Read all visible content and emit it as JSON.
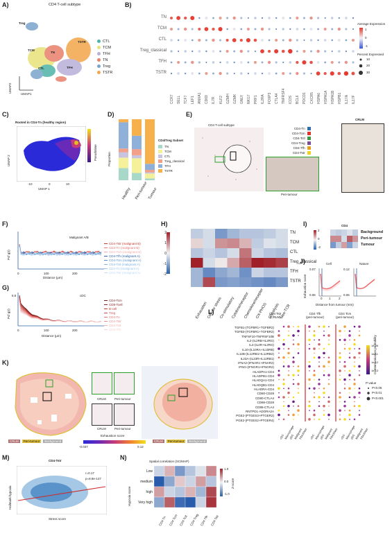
{
  "panels": {
    "A": {
      "label": "A)",
      "title": "CD4 T-cell subtype",
      "xlabel": "UMAP1",
      "ylabel": "UMAP2",
      "legend": [
        {
          "name": "CTL",
          "color": "#4fb3a8"
        },
        {
          "name": "TCM",
          "color": "#e8e27a"
        },
        {
          "name": "TFH",
          "color": "#b8b0d8"
        },
        {
          "name": "TN",
          "color": "#e8806a"
        },
        {
          "name": "Treg",
          "color": "#7aa4cc"
        },
        {
          "name": "TSTR",
          "color": "#f3a64a"
        }
      ],
      "cluster_labels": [
        "Treg",
        "TCM",
        "TN",
        "TSTR",
        "CTL",
        "TFH"
      ]
    },
    "B": {
      "label": "B)",
      "rows": [
        "TN",
        "TCM",
        "CTL",
        "Treg_classical",
        "TFH",
        "TSTR"
      ],
      "genes": [
        "CCR7",
        "SELL",
        "TCF7",
        "LEF1",
        "ANXA1",
        "CD69",
        "IL7R",
        "KLF2",
        "GZMH",
        "GZMK",
        "GNLY",
        "NKG7",
        "PRF1",
        "IL2RA",
        "FOXP3",
        "CTLA4",
        "TNFRSF4",
        "ICOS",
        "BCL6",
        "PDCD1",
        "CXCR5",
        "HSPA6",
        "HSPA1A",
        "HSPA1B",
        "HSPB1",
        "IL17A",
        "IL17F"
      ],
      "avg_title": "Average Expression",
      "avg_ticks": [
        "1",
        "0",
        "-1"
      ],
      "pct_title": "Percent Expressed",
      "pct_ticks": [
        "10",
        "20",
        "30"
      ]
    },
    "C": {
      "label": "C)",
      "title": "Rooted in CD4-Tn (healthy region)",
      "xlabel": "UMAP 1",
      "ylabel": "UMAP 2",
      "cbar": "Pseudotime",
      "xticks": [
        "-10",
        "0",
        "10"
      ],
      "yticks": [
        "10",
        "5",
        "0",
        "-5",
        "-10"
      ],
      "cticks": [
        "20",
        "15",
        "10",
        "5",
        "0"
      ]
    },
    "D": {
      "label": "D)",
      "ylabel": "Proportion",
      "yticks": [
        "100%",
        "75%",
        "50%",
        "25%",
        "0%"
      ],
      "legend_title": "CD4/Treg Subset",
      "legend": [
        {
          "name": "TN",
          "color": "#a8d8c8"
        },
        {
          "name": "TCM",
          "color": "#f5f09a"
        },
        {
          "name": "CTL",
          "color": "#c8c4e0"
        },
        {
          "name": "Treg_classical",
          "color": "#f3a08a"
        },
        {
          "name": "TFH",
          "color": "#8fb0d8"
        },
        {
          "name": "TSTR",
          "color": "#f6b14c"
        }
      ]
    },
    "E": {
      "label": "E)",
      "title": "CD4 T-cell subtype",
      "crlm": "CRLM",
      "peri": "Peri-tumour",
      "legend": [
        {
          "name": "CD4-Tn",
          "color": "#2e6db4"
        },
        {
          "name": "CD4-Tcm",
          "color": "#e5322a"
        },
        {
          "name": "CD4-Tctl",
          "color": "#3b9a45"
        },
        {
          "name": "CD4-Treg",
          "color": "#7a4c9a"
        },
        {
          "name": "CD4-Tfh",
          "color": "#e8a21a"
        },
        {
          "name": "CD4-Tstr",
          "color": "#f0d020"
        }
      ]
    },
    "F": {
      "label": "F)",
      "ylabel": "Pcf g(r)",
      "xlabel": "Distance (μm)",
      "title": "Malignant A/B",
      "xticks": [
        "0",
        "100",
        "200"
      ],
      "yticks": [
        "2",
        "1"
      ],
      "legend": [
        "CD4-Tstr (malignant B)",
        "CD4-Tn (malignant B)",
        "CD4-Tcm (malignant B)",
        "CD4-Tfh (malignant A)",
        "CD4-Tcm (malignant A)",
        "CD4-Tctl (malignant A)",
        "CD4-Tn (malignant A)",
        "CD4-Tstr (malignant A)"
      ]
    },
    "G": {
      "label": "G)",
      "ylabel": "Pcf g(r)",
      "xlabel": "Distance (μm)",
      "title": "cDC",
      "xticks": [
        "0",
        "100",
        "200"
      ],
      "yticks": [
        "6.5",
        "1"
      ],
      "legend": [
        "CD4-Tcm",
        "CD8-Tcell",
        "B-cell",
        "Treg",
        "CD4-Tn",
        "CD4-Tstr",
        "CD4-Tctl",
        "CD4-Tfh"
      ]
    },
    "H": {
      "label": "H)",
      "rows": [
        "TN",
        "TCM",
        "CTL",
        "Treg_classical",
        "TFH",
        "TSTR"
      ],
      "cols": [
        "Exhaustion",
        "Cellular stress",
        "Co-stimulatory",
        "Cytokine/receptor",
        "Chemokine/receptor",
        "OX-PHOS",
        "Glycolysis",
        "Neo-TCR"
      ],
      "cticks": [
        "2",
        "1",
        "0",
        "-1",
        "-2"
      ]
    },
    "I": {
      "label": "I)",
      "title": "CD4",
      "rows": [
        "Background",
        "Peri-tumour",
        "Tumour"
      ],
      "cticks": [
        "2",
        "0",
        "-2"
      ]
    },
    "J": {
      "label": "J)",
      "ylabel": "Exhaustion score",
      "xlabel": "Distance from tumour (mm)",
      "sub1": "Cell",
      "sub2": "Nature",
      "y1": [
        "0.07",
        "0.06"
      ],
      "y2": [
        "0.12",
        "0.06"
      ],
      "xt": [
        "0",
        "1",
        "2"
      ]
    },
    "K": {
      "label": "K)",
      "crlm": "CRLM",
      "peri": "Peri-tumour",
      "bg": "Background",
      "cbar_title": "Exhaustion score",
      "cmin": "-0.037",
      "cmax": "0.12"
    },
    "L": {
      "label": "L)",
      "heads": [
        "CD4 Tstr\n(CRLM)",
        "CD4 Tfh\n(peri-tumour)",
        "CD4 Tcm\n(peri-tumour)"
      ],
      "rows": [
        "TGFB1-(TGFBR1+TGFBR2)",
        "TGFB3-(TGFBR1+TGFBR2)",
        "TNFSF10-TNFRSF10B",
        "IL2-(IL2RB+IL2RG)",
        "IL4-(IL4R+IL2RG)",
        "IL10-(IL10RA+IL10RB)",
        "IL12B-(IL12RB1+IL12RB2)",
        "IL23A-(IL23R+IL12RB1)",
        "IFNA2-(IFNAR1+IFNAR2)",
        "IFNG-(IFNGR1+IFNGR2)",
        "HLADPA1-CD4",
        "HLADPB1-CD4",
        "HLADQA1-CD4",
        "HLADQB1-CD4",
        "HLADRA-CD4",
        "CD80-CD28",
        "CD80-CTLA4",
        "CD86-CD28",
        "CD86-CTLA4",
        "RNTPD1-ADORA2A",
        "PGE2-(PTGES3+PTGER2)",
        "PGE2-(PTGES2+PTGER4)"
      ],
      "xcells": [
        "cDC",
        "Macrophage",
        "pDC",
        "Malignant",
        "Fibroblast"
      ],
      "prob_title": "Commmunication probability",
      "prob_ticks": [
        "1e-06",
        "1e-11",
        "1e-12",
        "1e-13"
      ],
      "pval_title": "P-value",
      "pval": [
        "P<0.05",
        "P<0.01",
        "P<0.001"
      ]
    },
    "M": {
      "label": "M)",
      "title": "CD4-Tstr",
      "ylabel": "Hallmark hypoxia",
      "xlabel": "Stress score",
      "r": "r=0.17",
      "p": "p=8.8e-147"
    },
    "N": {
      "label": "N)",
      "title": "Spatial correlation (SC/MAP)",
      "ylabel": "Hypoxia score",
      "rows": [
        "Low",
        "medium",
        "high",
        "Very high"
      ],
      "cols": [
        "CD4 Tn",
        "CD4 Tcm",
        "CD4 Tctl",
        "CD4 Treg",
        "CD4 Tfh",
        "CD4 Tstr"
      ],
      "cbar": "Z-score",
      "cticks": [
        "1.0",
        "0.0",
        "-1.0"
      ]
    }
  },
  "chart_data": [
    {
      "type": "heatmap",
      "panel": "H",
      "rows": [
        "TN",
        "TCM",
        "CTL",
        "Treg_classical",
        "TFH",
        "TSTR"
      ],
      "cols": [
        "Exhaustion",
        "Cellular stress",
        "Co-stimulatory",
        "Cytokine/receptor",
        "Chemokine/receptor",
        "OX-PHOS",
        "Glycolysis",
        "Neo-TCR"
      ],
      "values": [
        [
          -0.5,
          -0.3,
          -1.2,
          -0.8,
          -0.6,
          -0.6,
          -0.5,
          -0.3
        ],
        [
          0.3,
          -0.3,
          0.9,
          1.0,
          0.6,
          -0.5,
          -0.2,
          -0.3
        ],
        [
          -0.6,
          -0.4,
          -0.6,
          -0.3,
          1.2,
          -0.4,
          -0.6,
          -0.7
        ],
        [
          2.0,
          -0.3,
          0.1,
          0.7,
          1.4,
          2.0,
          1.9,
          1.7
        ],
        [
          -0.8,
          -1.4,
          -1.0,
          -0.8,
          -1.3,
          -0.4,
          -0.6,
          -0.6
        ],
        [
          -0.8,
          1.6,
          -1.2,
          -1.1,
          -1.2,
          -1.3,
          -1.4,
          -1.2
        ]
      ],
      "zlim": [
        -2,
        2
      ]
    },
    {
      "type": "heatmap",
      "panel": "I",
      "rows": [
        "Background",
        "Peri-tumour",
        "Tumour"
      ],
      "values": [
        [
          -0.4,
          -0.5,
          -0.4,
          -0.2,
          -0.5
        ],
        [
          1.0,
          1.0,
          -0.3,
          1.4,
          0.9
        ],
        [
          -1.2,
          -0.5,
          0.8,
          -1.1,
          -0.4
        ]
      ],
      "zlim": [
        -2,
        2
      ]
    },
    {
      "type": "heatmap",
      "panel": "N",
      "rows": [
        "Low",
        "medium",
        "high",
        "Very high"
      ],
      "cols": [
        "CD4 Tn",
        "CD4 Tcm",
        "CD4 Tctl",
        "CD4 Treg",
        "CD4 Tfh",
        "CD4 Tstr"
      ],
      "values": [
        [
          -0.2,
          0.3,
          -0.6,
          -0.3,
          -0.1,
          0.5
        ],
        [
          -1.1,
          -0.5,
          0.2,
          -0.2,
          0.4,
          -0.3
        ],
        [
          0.4,
          -0.2,
          -0.3,
          0.3,
          -0.4,
          0.8
        ],
        [
          -0.5,
          0.7,
          -0.9,
          -1.1,
          -0.2,
          0.9
        ]
      ],
      "zlim": [
        -1,
        1
      ]
    },
    {
      "type": "bar",
      "panel": "D",
      "stacked": true,
      "categories": [
        "Healthy",
        "Peri-tumour",
        "Tumour"
      ],
      "series": [
        {
          "name": "TN",
          "values": [
            20,
            12,
            3
          ]
        },
        {
          "name": "TCM",
          "values": [
            17,
            24,
            8
          ]
        },
        {
          "name": "CTL",
          "values": [
            9,
            5,
            2
          ]
        },
        {
          "name": "Treg_classical",
          "values": [
            6,
            10,
            4
          ]
        },
        {
          "name": "TFH",
          "values": [
            43,
            22,
            10
          ]
        },
        {
          "name": "TSTR",
          "values": [
            5,
            27,
            73
          ]
        }
      ],
      "ylim": [
        0,
        100
      ]
    }
  ]
}
